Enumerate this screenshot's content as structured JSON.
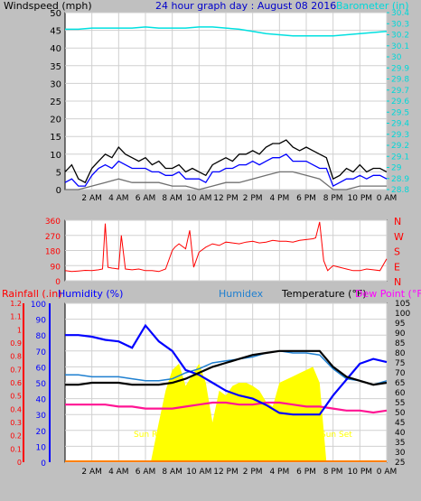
{
  "chart_data": [
    {
      "type": "line",
      "title": "24 hour graph day : August 08 2016",
      "left_label": "Windspeed (mph)",
      "right_label": "Barometer (in)",
      "x_ticks": [
        "2 AM",
        "4 AM",
        "6 AM",
        "8 AM",
        "10 AM",
        "12 PM",
        "2 PM",
        "4 PM",
        "6 PM",
        "8 PM",
        "10 PM",
        "0 AM"
      ],
      "y_left_ticks": [
        "0",
        "5",
        "10",
        "15",
        "20",
        "25",
        "30",
        "35",
        "40",
        "45",
        "50"
      ],
      "y_left_range": [
        0,
        50
      ],
      "y_right_ticks": [
        "28.8",
        "28.9",
        "29",
        "29.1",
        "29.2",
        "29.3",
        "29.4",
        "29.5",
        "29.6",
        "29.7",
        "29.8",
        "29.9",
        "30",
        "30.1",
        "30.2",
        "30.3",
        "30.4"
      ],
      "y_right_range": [
        28.8,
        30.4
      ],
      "grid": true,
      "series": [
        {
          "key": "barometer",
          "color": "#00e0e0",
          "axis": "right",
          "x": [
            0,
            1,
            2,
            3,
            4,
            5,
            6,
            7,
            8,
            9,
            10,
            11,
            12,
            13,
            14,
            15,
            16,
            17,
            18,
            19,
            20,
            21,
            22,
            23,
            24
          ],
          "values": [
            30.25,
            30.25,
            30.26,
            30.26,
            30.26,
            30.26,
            30.27,
            30.26,
            30.26,
            30.26,
            30.27,
            30.27,
            30.26,
            30.25,
            30.23,
            30.21,
            30.2,
            30.19,
            30.19,
            30.19,
            30.19,
            30.2,
            30.21,
            30.22,
            30.23
          ]
        },
        {
          "key": "wind_gust",
          "color": "#000000",
          "axis": "left",
          "x": [
            0,
            0.5,
            1,
            1.5,
            2,
            2.5,
            3,
            3.5,
            4,
            4.5,
            5,
            5.5,
            6,
            6.5,
            7,
            7.5,
            8,
            8.5,
            9,
            9.5,
            10,
            10.5,
            11,
            11.5,
            12,
            12.5,
            13,
            13.5,
            14,
            14.5,
            15,
            15.5,
            16,
            16.5,
            17,
            17.5,
            18,
            18.5,
            19,
            19.5,
            20,
            20.5,
            21,
            21.5,
            22,
            22.5,
            23,
            23.5,
            24
          ],
          "values": [
            5,
            7,
            3,
            2,
            6,
            8,
            10,
            9,
            12,
            10,
            9,
            8,
            9,
            7,
            8,
            6,
            6,
            7,
            5,
            6,
            5,
            4,
            7,
            8,
            9,
            8,
            10,
            10,
            11,
            10,
            12,
            13,
            13,
            14,
            12,
            11,
            12,
            11,
            10,
            9,
            3,
            4,
            6,
            5,
            7,
            5,
            6,
            6,
            5
          ]
        },
        {
          "key": "wind_avg",
          "color": "#0000ff",
          "axis": "left",
          "x": [
            0,
            0.5,
            1,
            1.5,
            2,
            2.5,
            3,
            3.5,
            4,
            4.5,
            5,
            5.5,
            6,
            6.5,
            7,
            7.5,
            8,
            8.5,
            9,
            9.5,
            10,
            10.5,
            11,
            11.5,
            12,
            12.5,
            13,
            13.5,
            14,
            14.5,
            15,
            15.5,
            16,
            16.5,
            17,
            17.5,
            18,
            18.5,
            19,
            19.5,
            20,
            20.5,
            21,
            21.5,
            22,
            22.5,
            23,
            23.5,
            24
          ],
          "values": [
            2,
            3,
            1,
            1,
            4,
            6,
            7,
            6,
            8,
            7,
            6,
            6,
            6,
            5,
            5,
            4,
            4,
            5,
            3,
            3,
            3,
            2,
            5,
            5,
            6,
            6,
            7,
            7,
            8,
            7,
            8,
            9,
            9,
            10,
            8,
            8,
            8,
            7,
            6,
            6,
            1,
            2,
            3,
            3,
            4,
            3,
            4,
            4,
            3
          ]
        },
        {
          "key": "wind_min",
          "color": "#707070",
          "axis": "left",
          "x": [
            0,
            1,
            2,
            3,
            4,
            5,
            6,
            7,
            8,
            9,
            10,
            11,
            12,
            13,
            14,
            15,
            16,
            17,
            18,
            19,
            20,
            21,
            22,
            23,
            24
          ],
          "values": [
            0,
            0,
            1,
            2,
            3,
            2,
            2,
            2,
            1,
            1,
            0,
            1,
            2,
            2,
            3,
            4,
            5,
            5,
            4,
            3,
            0,
            0,
            1,
            1,
            1
          ]
        }
      ]
    },
    {
      "type": "scatter",
      "left_ticks": [
        "360",
        "270",
        "180",
        "90",
        "0"
      ],
      "y_range": [
        0,
        360
      ],
      "right_ticks": [
        "N",
        "W",
        "S",
        "E",
        "N"
      ],
      "x_ticks": [],
      "series": [
        {
          "key": "wind_dir",
          "color": "#ff0000",
          "x": [
            0,
            0.5,
            1,
            1.5,
            2,
            2.5,
            2.8,
            3,
            3.2,
            3.5,
            4,
            4.2,
            4.5,
            5,
            5.5,
            6,
            6.5,
            7,
            7.5,
            8,
            8.2,
            8.5,
            9,
            9.3,
            9.6,
            10,
            10.5,
            11,
            11.5,
            12,
            12.5,
            13,
            13.5,
            14,
            14.5,
            15,
            15.5,
            16,
            16.5,
            17,
            17.5,
            18,
            18.5,
            18.7,
            19,
            19.3,
            19.6,
            20,
            20.5,
            21,
            21.5,
            22,
            22.5,
            23,
            23.5,
            24
          ],
          "values": [
            60,
            55,
            58,
            62,
            60,
            65,
            70,
            340,
            80,
            75,
            70,
            270,
            70,
            65,
            70,
            60,
            60,
            55,
            70,
            180,
            200,
            220,
            190,
            300,
            80,
            170,
            200,
            220,
            210,
            230,
            225,
            220,
            230,
            235,
            225,
            230,
            240,
            235,
            235,
            230,
            240,
            245,
            250,
            255,
            350,
            120,
            60,
            90,
            80,
            70,
            60,
            60,
            70,
            65,
            60,
            130
          ]
        }
      ]
    },
    {
      "type": "line",
      "left_label_1": "Rainfall (.in)",
      "left_label_2": "Humidity (%)",
      "middle_label": "Humidex",
      "right_label_1": "Temperature (°F)",
      "right_label_2": "Dew Point (°F)",
      "rain_ticks": [
        "0",
        "0.1",
        "0.2",
        "0.3",
        "0.4",
        "0.5",
        "0.6",
        "0.7",
        "0.8",
        "0.9",
        "1",
        "1.1",
        "1.2"
      ],
      "humidity_ticks": [
        "0",
        "10",
        "20",
        "30",
        "40",
        "50",
        "60",
        "70",
        "80",
        "90",
        "100"
      ],
      "temp_ticks": [
        "25",
        "30",
        "35",
        "40",
        "45",
        "50",
        "55",
        "60",
        "65",
        "70",
        "75",
        "80",
        "85",
        "90",
        "95",
        "100",
        "105"
      ],
      "x_ticks": [
        "2 AM",
        "4 AM",
        "6 AM",
        "8 AM",
        "10 AM",
        "12 PM",
        "2 PM",
        "4 PM",
        "6 PM",
        "8 PM",
        "10 PM",
        "0 AM"
      ],
      "sun_rise_label": "Sun Rise",
      "sun_set_label": "Sun Set",
      "temp_range": [
        25,
        105
      ],
      "humidity_range": [
        0,
        100
      ],
      "series": [
        {
          "key": "temperature",
          "color": "#000000",
          "axis": "temp",
          "x": [
            0,
            1,
            2,
            3,
            4,
            5,
            6,
            7,
            8,
            9,
            10,
            11,
            12,
            13,
            14,
            15,
            16,
            17,
            18,
            19,
            20,
            21,
            22,
            23,
            24
          ],
          "values": [
            64,
            64,
            65,
            65,
            65,
            64,
            64,
            64,
            65,
            67,
            70,
            73,
            75,
            77,
            79,
            80,
            81,
            81,
            81,
            81,
            73,
            68,
            66,
            64,
            65
          ]
        },
        {
          "key": "humidex",
          "color": "#1e7fd0",
          "axis": "temp",
          "x": [
            0,
            1,
            2,
            3,
            4,
            5,
            6,
            7,
            8,
            9,
            10,
            11,
            12,
            13,
            14,
            15,
            16,
            17,
            18,
            19,
            20,
            21,
            22,
            23,
            24
          ],
          "values": [
            69,
            69,
            68,
            68,
            68,
            67,
            66,
            66,
            67,
            70,
            72,
            75,
            76,
            77,
            78,
            80,
            81,
            80,
            80,
            79,
            72,
            67,
            66,
            64,
            66
          ]
        },
        {
          "key": "humidity",
          "color": "#0000ff",
          "axis": "humidity",
          "x": [
            0,
            1,
            2,
            3,
            4,
            5,
            6,
            7,
            8,
            9,
            10,
            11,
            12,
            13,
            14,
            15,
            16,
            17,
            18,
            19,
            20,
            21,
            22,
            23,
            24
          ],
          "values": [
            80,
            80,
            79,
            77,
            76,
            72,
            86,
            76,
            70,
            58,
            55,
            50,
            45,
            42,
            40,
            36,
            31,
            30,
            30,
            30,
            42,
            52,
            62,
            65,
            63
          ]
        },
        {
          "key": "dewpoint",
          "color": "#ff1493",
          "axis": "temp",
          "x": [
            0,
            1,
            2,
            3,
            4,
            5,
            6,
            7,
            8,
            9,
            10,
            11,
            12,
            13,
            14,
            15,
            16,
            17,
            18,
            19,
            20,
            21,
            22,
            23,
            24
          ],
          "values": [
            54,
            54,
            54,
            54,
            53,
            53,
            52,
            52,
            52,
            53,
            54,
            55,
            55,
            54,
            54,
            55,
            55,
            54,
            53,
            53,
            52,
            51,
            51,
            50,
            51
          ]
        },
        {
          "key": "solar",
          "color": "#ffff00",
          "axis": "humidity",
          "x": [
            6.4,
            7,
            7.5,
            8,
            8.5,
            9,
            9.5,
            10,
            10.5,
            11,
            11.5,
            12,
            12.5,
            13,
            13.5,
            14,
            14.5,
            15,
            15.5,
            16,
            16.5,
            17,
            17.5,
            18,
            18.5,
            19,
            19.5
          ],
          "values": [
            0,
            25,
            45,
            58,
            62,
            48,
            55,
            62,
            50,
            25,
            45,
            42,
            48,
            50,
            50,
            48,
            45,
            38,
            35,
            50,
            52,
            54,
            56,
            58,
            60,
            50,
            0
          ]
        }
      ]
    }
  ]
}
